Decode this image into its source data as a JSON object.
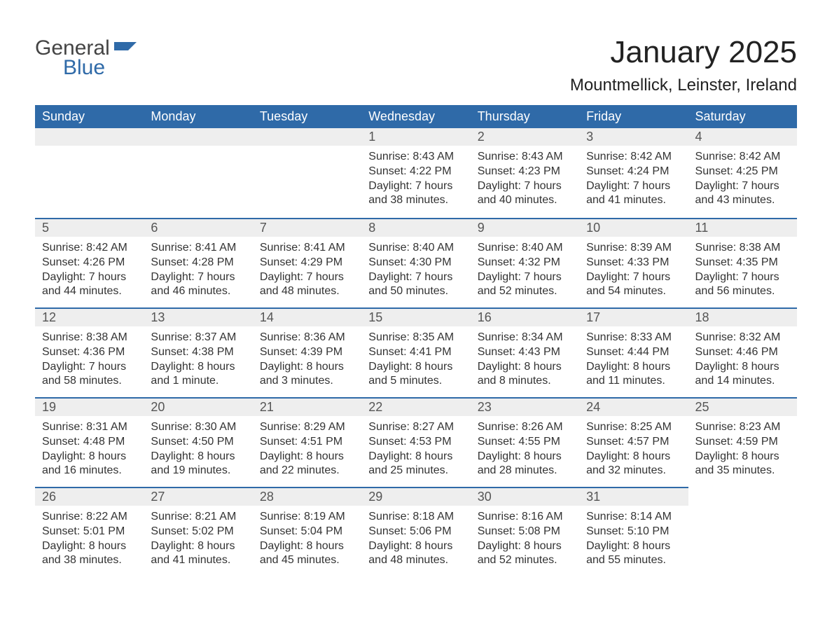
{
  "logo": {
    "word1": "General",
    "word2": "Blue",
    "brand_color": "#2f6aa8",
    "text_color": "#444444"
  },
  "title": "January 2025",
  "location": "Mountmellick, Leinster, Ireland",
  "colors": {
    "header_bg": "#2f6aa8",
    "header_text": "#ffffff",
    "daybar_bg": "#eeeeee",
    "daybar_border": "#2f6aa8",
    "body_text": "#333333",
    "daynum_text": "#555555",
    "page_bg": "#ffffff"
  },
  "typography": {
    "title_fontsize": 44,
    "location_fontsize": 24,
    "header_fontsize": 18,
    "daynum_fontsize": 18,
    "body_fontsize": 16
  },
  "layout": {
    "type": "calendar-table",
    "columns": 7,
    "rows": 5,
    "aspect": "1188x918"
  },
  "weekdays": [
    "Sunday",
    "Monday",
    "Tuesday",
    "Wednesday",
    "Thursday",
    "Friday",
    "Saturday"
  ],
  "weeks": [
    [
      null,
      null,
      null,
      {
        "n": "1",
        "sunrise": "8:43 AM",
        "sunset": "4:22 PM",
        "day1": "Daylight: 7 hours",
        "day2": "and 38 minutes."
      },
      {
        "n": "2",
        "sunrise": "8:43 AM",
        "sunset": "4:23 PM",
        "day1": "Daylight: 7 hours",
        "day2": "and 40 minutes."
      },
      {
        "n": "3",
        "sunrise": "8:42 AM",
        "sunset": "4:24 PM",
        "day1": "Daylight: 7 hours",
        "day2": "and 41 minutes."
      },
      {
        "n": "4",
        "sunrise": "8:42 AM",
        "sunset": "4:25 PM",
        "day1": "Daylight: 7 hours",
        "day2": "and 43 minutes."
      }
    ],
    [
      {
        "n": "5",
        "sunrise": "8:42 AM",
        "sunset": "4:26 PM",
        "day1": "Daylight: 7 hours",
        "day2": "and 44 minutes."
      },
      {
        "n": "6",
        "sunrise": "8:41 AM",
        "sunset": "4:28 PM",
        "day1": "Daylight: 7 hours",
        "day2": "and 46 minutes."
      },
      {
        "n": "7",
        "sunrise": "8:41 AM",
        "sunset": "4:29 PM",
        "day1": "Daylight: 7 hours",
        "day2": "and 48 minutes."
      },
      {
        "n": "8",
        "sunrise": "8:40 AM",
        "sunset": "4:30 PM",
        "day1": "Daylight: 7 hours",
        "day2": "and 50 minutes."
      },
      {
        "n": "9",
        "sunrise": "8:40 AM",
        "sunset": "4:32 PM",
        "day1": "Daylight: 7 hours",
        "day2": "and 52 minutes."
      },
      {
        "n": "10",
        "sunrise": "8:39 AM",
        "sunset": "4:33 PM",
        "day1": "Daylight: 7 hours",
        "day2": "and 54 minutes."
      },
      {
        "n": "11",
        "sunrise": "8:38 AM",
        "sunset": "4:35 PM",
        "day1": "Daylight: 7 hours",
        "day2": "and 56 minutes."
      }
    ],
    [
      {
        "n": "12",
        "sunrise": "8:38 AM",
        "sunset": "4:36 PM",
        "day1": "Daylight: 7 hours",
        "day2": "and 58 minutes."
      },
      {
        "n": "13",
        "sunrise": "8:37 AM",
        "sunset": "4:38 PM",
        "day1": "Daylight: 8 hours",
        "day2": "and 1 minute."
      },
      {
        "n": "14",
        "sunrise": "8:36 AM",
        "sunset": "4:39 PM",
        "day1": "Daylight: 8 hours",
        "day2": "and 3 minutes."
      },
      {
        "n": "15",
        "sunrise": "8:35 AM",
        "sunset": "4:41 PM",
        "day1": "Daylight: 8 hours",
        "day2": "and 5 minutes."
      },
      {
        "n": "16",
        "sunrise": "8:34 AM",
        "sunset": "4:43 PM",
        "day1": "Daylight: 8 hours",
        "day2": "and 8 minutes."
      },
      {
        "n": "17",
        "sunrise": "8:33 AM",
        "sunset": "4:44 PM",
        "day1": "Daylight: 8 hours",
        "day2": "and 11 minutes."
      },
      {
        "n": "18",
        "sunrise": "8:32 AM",
        "sunset": "4:46 PM",
        "day1": "Daylight: 8 hours",
        "day2": "and 14 minutes."
      }
    ],
    [
      {
        "n": "19",
        "sunrise": "8:31 AM",
        "sunset": "4:48 PM",
        "day1": "Daylight: 8 hours",
        "day2": "and 16 minutes."
      },
      {
        "n": "20",
        "sunrise": "8:30 AM",
        "sunset": "4:50 PM",
        "day1": "Daylight: 8 hours",
        "day2": "and 19 minutes."
      },
      {
        "n": "21",
        "sunrise": "8:29 AM",
        "sunset": "4:51 PM",
        "day1": "Daylight: 8 hours",
        "day2": "and 22 minutes."
      },
      {
        "n": "22",
        "sunrise": "8:27 AM",
        "sunset": "4:53 PM",
        "day1": "Daylight: 8 hours",
        "day2": "and 25 minutes."
      },
      {
        "n": "23",
        "sunrise": "8:26 AM",
        "sunset": "4:55 PM",
        "day1": "Daylight: 8 hours",
        "day2": "and 28 minutes."
      },
      {
        "n": "24",
        "sunrise": "8:25 AM",
        "sunset": "4:57 PM",
        "day1": "Daylight: 8 hours",
        "day2": "and 32 minutes."
      },
      {
        "n": "25",
        "sunrise": "8:23 AM",
        "sunset": "4:59 PM",
        "day1": "Daylight: 8 hours",
        "day2": "and 35 minutes."
      }
    ],
    [
      {
        "n": "26",
        "sunrise": "8:22 AM",
        "sunset": "5:01 PM",
        "day1": "Daylight: 8 hours",
        "day2": "and 38 minutes."
      },
      {
        "n": "27",
        "sunrise": "8:21 AM",
        "sunset": "5:02 PM",
        "day1": "Daylight: 8 hours",
        "day2": "and 41 minutes."
      },
      {
        "n": "28",
        "sunrise": "8:19 AM",
        "sunset": "5:04 PM",
        "day1": "Daylight: 8 hours",
        "day2": "and 45 minutes."
      },
      {
        "n": "29",
        "sunrise": "8:18 AM",
        "sunset": "5:06 PM",
        "day1": "Daylight: 8 hours",
        "day2": "and 48 minutes."
      },
      {
        "n": "30",
        "sunrise": "8:16 AM",
        "sunset": "5:08 PM",
        "day1": "Daylight: 8 hours",
        "day2": "and 52 minutes."
      },
      {
        "n": "31",
        "sunrise": "8:14 AM",
        "sunset": "5:10 PM",
        "day1": "Daylight: 8 hours",
        "day2": "and 55 minutes."
      },
      null
    ]
  ],
  "labels": {
    "sunrise_prefix": "Sunrise: ",
    "sunset_prefix": "Sunset: "
  }
}
